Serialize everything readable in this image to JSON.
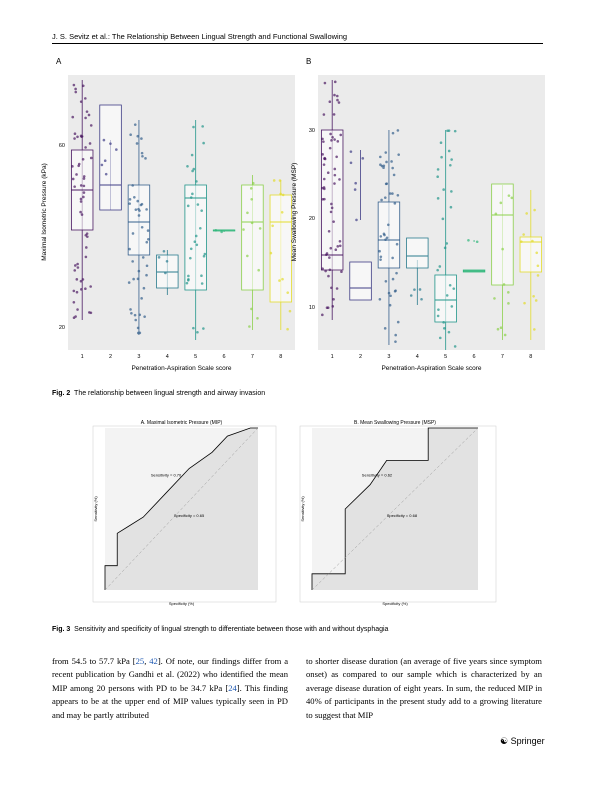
{
  "header": {
    "running_title": "J. S. Sevitz et al.: The Relationship Between Lingual Strength and Functional Swallowing"
  },
  "figure2": {
    "panels": [
      {
        "label": "A",
        "y_axis": "Maximal Isometric Pressure (kPa)",
        "x_axis": "Penetration-Aspiration Scale score",
        "y_ticks": [
          "60",
          "20"
        ],
        "x_ticks": [
          "1",
          "2",
          "3",
          "4",
          "5",
          "6",
          "7",
          "8"
        ]
      },
      {
        "label": "B",
        "y_axis": "Mean Swallowing Pressure (MSP)",
        "x_axis": "Penetration-Aspiration Scale score",
        "y_ticks": [
          "30",
          "20",
          "10"
        ],
        "x_ticks": [
          "1",
          "2",
          "3",
          "4",
          "5",
          "6",
          "7",
          "8"
        ]
      }
    ],
    "caption_label": "Fig. 2",
    "caption": "The relationship between lingual strength and airway invasion"
  },
  "figure3": {
    "panels": [
      {
        "title": "A. Maximal Isometric Pressure (MIP)",
        "annotations": [
          "Sensitivity = 0.70",
          "Specificity = 0.65"
        ],
        "x_axis": "Specificity (%)",
        "y_axis": "Sensitivity (%)"
      },
      {
        "title": "B. Mean Swallowing Pressure (MSP)",
        "annotations": [
          "Sensitivity = 0.62",
          "Specificity = 0.68"
        ],
        "x_axis": "Specificity (%)",
        "y_axis": "Sensitivity (%)"
      }
    ],
    "caption_label": "Fig. 3",
    "caption": "Sensitivity and specificity of lingual strength to differentiate between those with and without dysphagia"
  },
  "body": {
    "left_column": [
      "from 54.5 to 57.7 kPa [",
      "25",
      ", ",
      "42",
      "]. Of note, our findings differ from a recent publication by Gandhi et al. (2022) who identified the mean MIP among 20 persons with PD to be 34.7 kPa [",
      "24",
      "]. This finding appears to be at the upper end of MIP values typically seen in PD and may be partly attributed"
    ],
    "right_column": [
      "to shorter disease duration (an average of five years since symptom onset) as compared to our sample which is characterized by an average disease duration of eight years. In sum, the reduced MIP in 40% of participants in the present study add to a growing literature to suggest that MIP"
    ]
  },
  "footer": {
    "publisher": "Springer"
  }
}
